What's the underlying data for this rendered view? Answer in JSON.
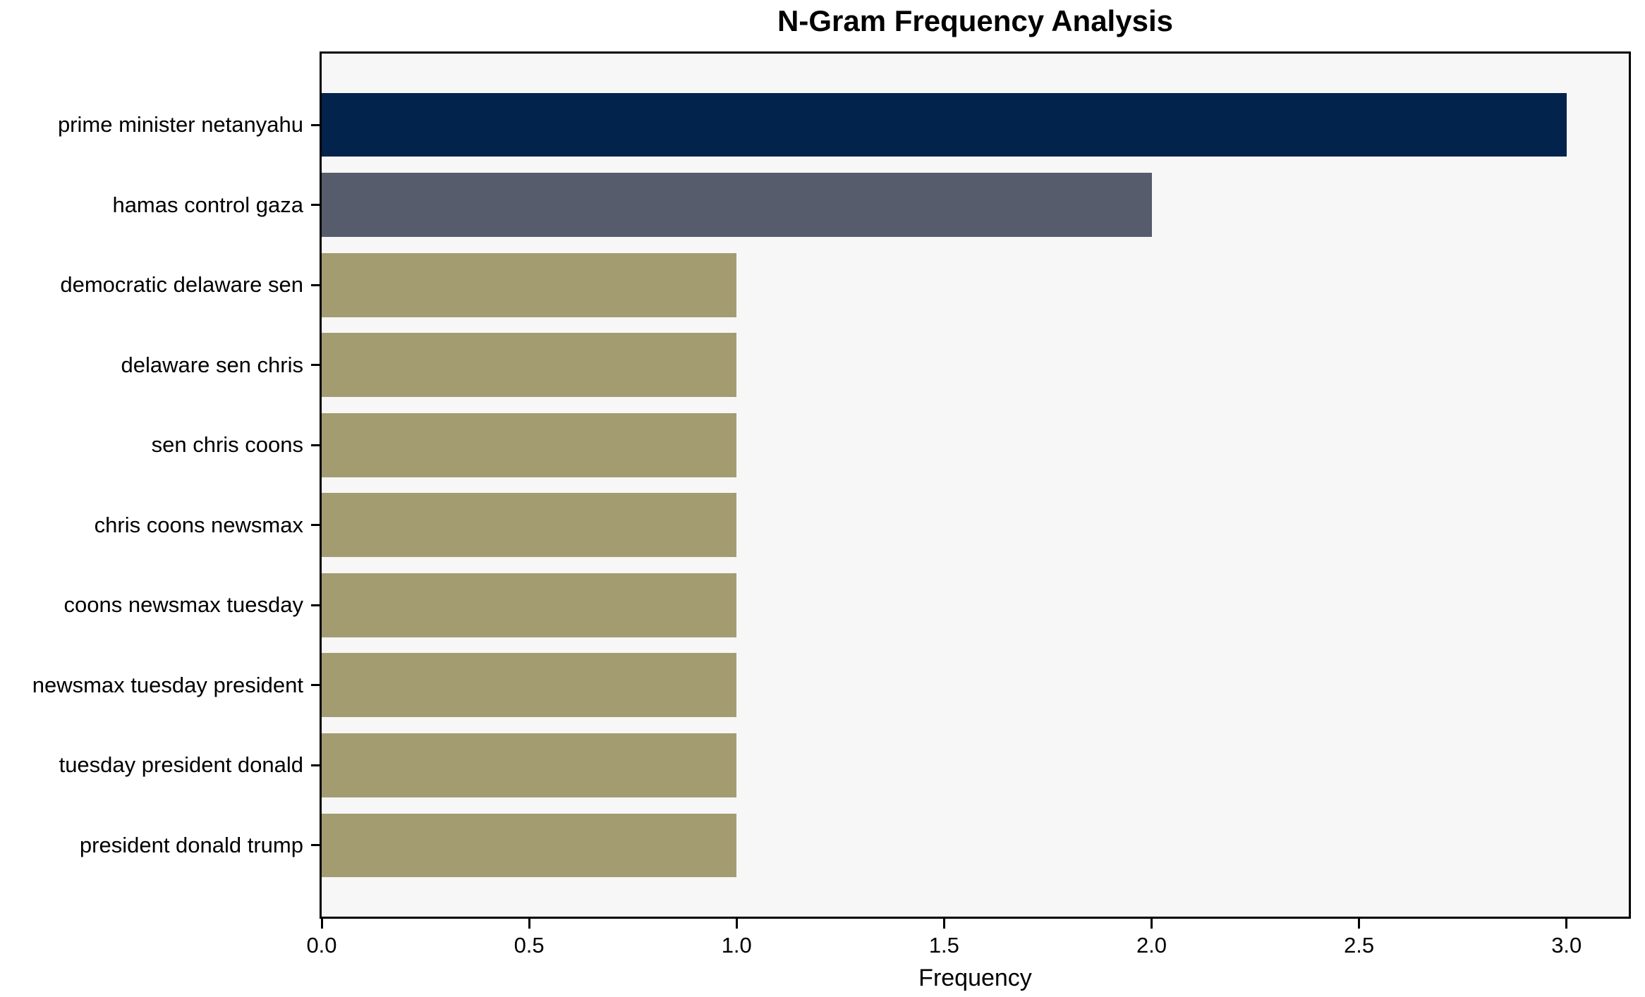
{
  "chart_data": {
    "type": "bar",
    "orientation": "horizontal",
    "title": "N-Gram Frequency Analysis",
    "xlabel": "Frequency",
    "ylabel": "",
    "categories": [
      "prime minister netanyahu",
      "hamas control gaza",
      "democratic delaware sen",
      "delaware sen chris",
      "sen chris coons",
      "chris coons newsmax",
      "coons newsmax tuesday",
      "newsmax tuesday president",
      "tuesday president donald",
      "president donald trump"
    ],
    "values": [
      3,
      2,
      1,
      1,
      1,
      1,
      1,
      1,
      1,
      1
    ],
    "bar_colors": [
      "#02234c",
      "#565c6b",
      "#a49c71",
      "#a49c71",
      "#a49c71",
      "#a49c71",
      "#a49c71",
      "#a49c71",
      "#a49c71",
      "#a49c71"
    ],
    "xticks": [
      {
        "label": "0.0",
        "value": 0.0
      },
      {
        "label": "0.5",
        "value": 0.5
      },
      {
        "label": "1.0",
        "value": 1.0
      },
      {
        "label": "1.5",
        "value": 1.5
      },
      {
        "label": "2.0",
        "value": 2.0
      },
      {
        "label": "2.5",
        "value": 2.5
      },
      {
        "label": "3.0",
        "value": 3.0
      }
    ],
    "xlim": [
      0,
      3.15
    ],
    "grid": false,
    "legend": null,
    "plot_background": "#f7f7f8",
    "figure_background": "#ffffff"
  }
}
